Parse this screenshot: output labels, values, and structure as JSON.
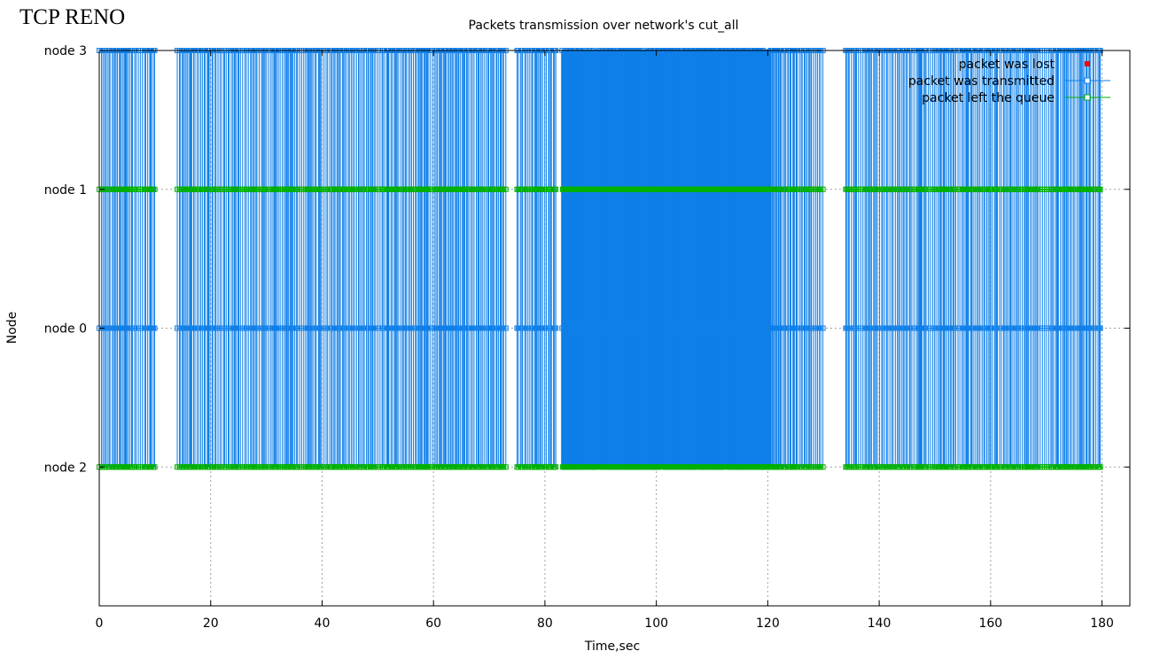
{
  "page_title": "TCP RENO",
  "chart_data": {
    "type": "scatter",
    "title": "Packets transmission over network's cut_all",
    "xlabel": "Time,sec",
    "ylabel": "Node",
    "xlim": [
      0,
      185
    ],
    "ylim": [
      -1,
      3
    ],
    "grid": true,
    "legend_position": "top-right",
    "x_ticks": [
      0,
      20,
      40,
      60,
      80,
      100,
      120,
      140,
      160,
      180
    ],
    "y_ticks": [
      {
        "value": 0,
        "label": "node 2"
      },
      {
        "value": 1,
        "label": "node 0"
      },
      {
        "value": 2,
        "label": "node 1"
      },
      {
        "value": 3,
        "label": "node 3"
      }
    ],
    "series": [
      {
        "name": "packet was lost",
        "color": "#ff0000",
        "marker": "filled-square",
        "points": []
      },
      {
        "name": "packet was transmitted",
        "color": "#0f7fe8",
        "marker": "open-square",
        "line": true
      },
      {
        "name": "packet left the queue",
        "color": "#00b000",
        "marker": "open-square",
        "line": true
      }
    ],
    "activity_intervals": [
      {
        "start": 0,
        "end": 10,
        "density": "medium"
      },
      {
        "start": 14,
        "end": 73,
        "density": "medium"
      },
      {
        "start": 75,
        "end": 82,
        "density": "medium"
      },
      {
        "start": 83,
        "end": 120.5,
        "density": "very high"
      },
      {
        "start": 120.5,
        "end": 130,
        "density": "medium"
      },
      {
        "start": 134,
        "end": 180,
        "density": "medium"
      }
    ]
  }
}
